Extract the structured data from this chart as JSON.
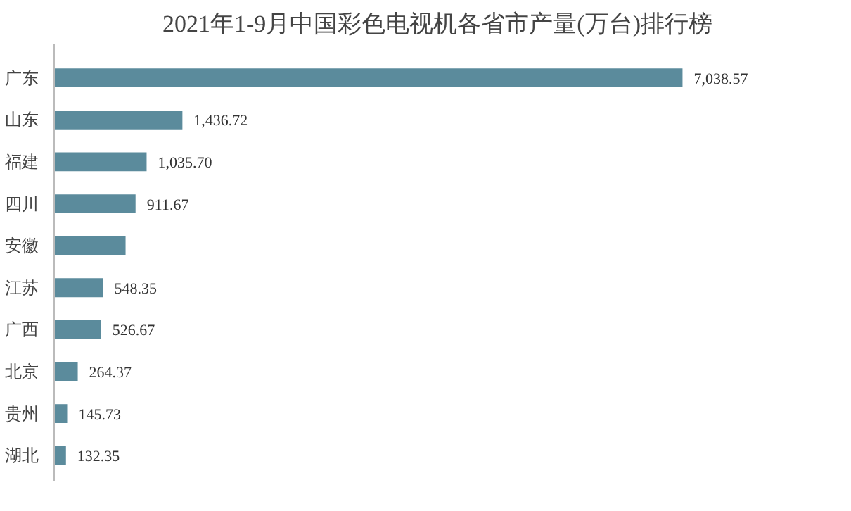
{
  "chart_data": {
    "type": "bar",
    "orientation": "horizontal",
    "title": "2021年1-9月中国彩色电视机各省市产量(万台)排行榜",
    "categories": [
      "广东",
      "山东",
      "福建",
      "四川",
      "安徽",
      "江苏",
      "广西",
      "北京",
      "贵州",
      "湖北"
    ],
    "values": [
      7038.57,
      1436.72,
      1035.7,
      911.67,
      800,
      548.35,
      526.67,
      264.37,
      145.73,
      132.35
    ],
    "value_labels": [
      "7,038.57",
      "1,436.72",
      "1,035.70",
      "911.67",
      null,
      "548.35",
      "526.67",
      "264.37",
      "145.73",
      "132.35"
    ],
    "color": "#5b8b9c",
    "grid": false
  }
}
